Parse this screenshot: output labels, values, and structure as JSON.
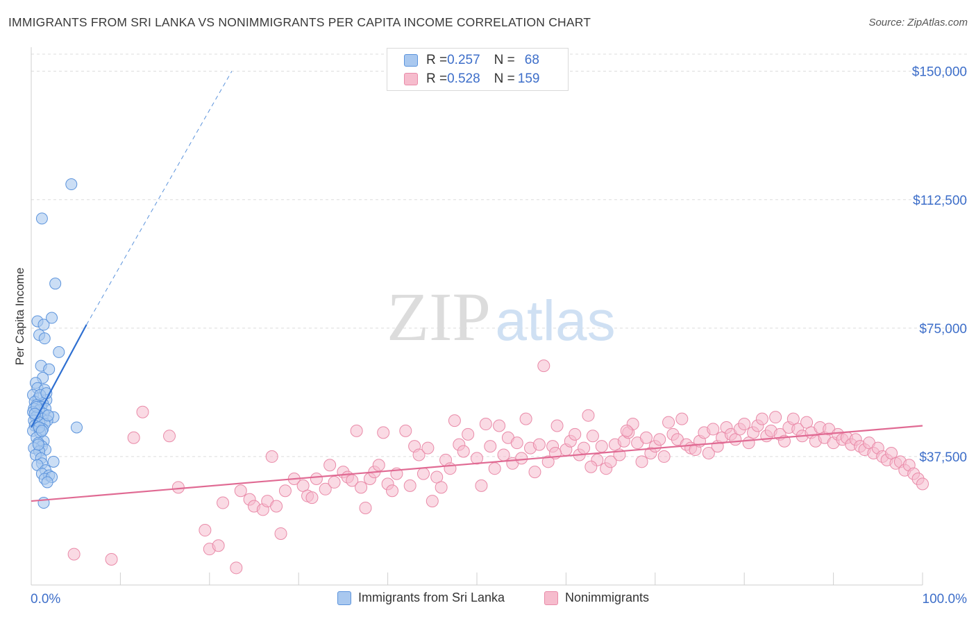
{
  "header": {
    "title": "IMMIGRANTS FROM SRI LANKA VS NONIMMIGRANTS PER CAPITA INCOME CORRELATION CHART",
    "source": "Source: ZipAtlas.com"
  },
  "watermark": {
    "zip": "ZIP",
    "atlas": "atlas"
  },
  "colors": {
    "blue_fill": "#a9c8ef",
    "blue_stroke": "#5b93dc",
    "blue_line": "#2e6fd1",
    "pink_fill": "#f6bccd",
    "pink_stroke": "#e98aa8",
    "pink_line": "#e06a93",
    "axis_label": "#3d6ec9",
    "grid": "#dcdcdc"
  },
  "inset_legend": {
    "rows": [
      {
        "r_label": "R = ",
        "r_value": "0.257",
        "n_label": "N = ",
        "n_value": "68"
      },
      {
        "r_label": "R = ",
        "r_value": "0.528",
        "n_label": "N = ",
        "n_value": "159"
      }
    ]
  },
  "chart_data": {
    "type": "scatter",
    "title": "IMMIGRANTS FROM SRI LANKA VS NONIMMIGRANTS PER CAPITA INCOME CORRELATION CHART",
    "xlabel": "",
    "ylabel": "Per Capita Income",
    "xlim": [
      0,
      100
    ],
    "ylim": [
      0,
      155000
    ],
    "x_tick_labels": [
      "0.0%",
      "100.0%"
    ],
    "y_ticks": [
      37500,
      75000,
      112500,
      150000
    ],
    "y_tick_labels": [
      "$37,500",
      "$75,000",
      "$112,500",
      "$150,000"
    ],
    "grid": true,
    "legend_position": "top-center",
    "series": [
      {
        "name": "Immigrants from Sri Lanka",
        "r": 0.257,
        "n": 68,
        "trend": {
          "x": [
            0,
            6.2
          ],
          "y": [
            46000,
            76000
          ]
        },
        "trend_extension": {
          "x": [
            6.2,
            22.5
          ],
          "y": [
            76000,
            150000
          ]
        },
        "points": [
          [
            4.5,
            117000
          ],
          [
            1.2,
            107000
          ],
          [
            2.7,
            88000
          ],
          [
            0.7,
            77000
          ],
          [
            1.4,
            76000
          ],
          [
            2.3,
            78000
          ],
          [
            0.9,
            73000
          ],
          [
            1.5,
            72000
          ],
          [
            3.1,
            68000
          ],
          [
            1.1,
            64000
          ],
          [
            2.0,
            63000
          ],
          [
            1.3,
            60500
          ],
          [
            0.5,
            59000
          ],
          [
            0.7,
            57500
          ],
          [
            1.5,
            57000
          ],
          [
            0.2,
            55500
          ],
          [
            0.8,
            54500
          ],
          [
            1.7,
            54000
          ],
          [
            0.4,
            53500
          ],
          [
            1.3,
            53000
          ],
          [
            0.6,
            52500
          ],
          [
            1.1,
            52000
          ],
          [
            0.3,
            51500
          ],
          [
            1.6,
            51500
          ],
          [
            0.9,
            51000
          ],
          [
            0.2,
            50500
          ],
          [
            1.4,
            50000
          ],
          [
            0.7,
            49500
          ],
          [
            2.5,
            49000
          ],
          [
            0.5,
            49000
          ],
          [
            1.2,
            48500
          ],
          [
            0.3,
            48000
          ],
          [
            1.8,
            48000
          ],
          [
            0.9,
            47500
          ],
          [
            1.5,
            47000
          ],
          [
            0.4,
            46500
          ],
          [
            5.1,
            46000
          ],
          [
            0.8,
            46000
          ],
          [
            1.3,
            45500
          ],
          [
            0.2,
            45000
          ],
          [
            1.0,
            44500
          ],
          [
            0.6,
            43000
          ],
          [
            1.4,
            42000
          ],
          [
            0.8,
            41500
          ],
          [
            1.2,
            40500
          ],
          [
            0.3,
            40000
          ],
          [
            1.6,
            39500
          ],
          [
            0.9,
            39000
          ],
          [
            0.5,
            38000
          ],
          [
            1.1,
            37000
          ],
          [
            2.5,
            36000
          ],
          [
            1.2,
            35500
          ],
          [
            0.7,
            35000
          ],
          [
            1.6,
            33500
          ],
          [
            1.2,
            32500
          ],
          [
            2.0,
            32000
          ],
          [
            1.5,
            31000
          ],
          [
            2.3,
            31500
          ],
          [
            1.8,
            30000
          ],
          [
            1.4,
            24000
          ],
          [
            0.9,
            46000
          ],
          [
            1.9,
            49500
          ],
          [
            0.6,
            52000
          ],
          [
            1.0,
            55500
          ],
          [
            1.7,
            56000
          ],
          [
            0.4,
            50000
          ],
          [
            1.2,
            45000
          ],
          [
            0.8,
            41000
          ]
        ]
      },
      {
        "name": "Nonimmigrants",
        "r": 0.528,
        "n": 159,
        "trend": {
          "x": [
            0,
            100
          ],
          "y": [
            24500,
            46500
          ]
        },
        "points": [
          [
            12.5,
            50500
          ],
          [
            11.5,
            43000
          ],
          [
            16.5,
            28500
          ],
          [
            19.5,
            16000
          ],
          [
            21.5,
            24000
          ],
          [
            23.5,
            27500
          ],
          [
            24.5,
            25000
          ],
          [
            25.0,
            23000
          ],
          [
            26.0,
            22000
          ],
          [
            26.5,
            24500
          ],
          [
            27.5,
            23000
          ],
          [
            28.0,
            15000
          ],
          [
            28.5,
            27500
          ],
          [
            29.5,
            31000
          ],
          [
            30.5,
            29000
          ],
          [
            31.0,
            26000
          ],
          [
            31.5,
            25500
          ],
          [
            32.0,
            31000
          ],
          [
            33.0,
            28000
          ],
          [
            34.0,
            30000
          ],
          [
            35.0,
            33000
          ],
          [
            35.5,
            31500
          ],
          [
            36.0,
            30500
          ],
          [
            37.0,
            28500
          ],
          [
            37.5,
            22500
          ],
          [
            38.0,
            31000
          ],
          [
            38.5,
            33000
          ],
          [
            39.0,
            35000
          ],
          [
            40.0,
            29500
          ],
          [
            40.5,
            27500
          ],
          [
            41.0,
            32500
          ],
          [
            42.0,
            45000
          ],
          [
            42.5,
            29000
          ],
          [
            43.0,
            40500
          ],
          [
            43.5,
            38000
          ],
          [
            44.0,
            32500
          ],
          [
            45.5,
            31500
          ],
          [
            45.0,
            24500
          ],
          [
            46.0,
            28500
          ],
          [
            46.5,
            36500
          ],
          [
            47.0,
            34000
          ],
          [
            48.0,
            41000
          ],
          [
            48.5,
            39000
          ],
          [
            49.0,
            44000
          ],
          [
            50.0,
            37000
          ],
          [
            50.5,
            29000
          ],
          [
            51.0,
            47000
          ],
          [
            51.5,
            40500
          ],
          [
            52.0,
            34000
          ],
          [
            53.0,
            38000
          ],
          [
            53.5,
            43000
          ],
          [
            54.0,
            35500
          ],
          [
            54.5,
            41500
          ],
          [
            55.5,
            48500
          ],
          [
            56.0,
            40000
          ],
          [
            56.5,
            33000
          ],
          [
            57.0,
            41000
          ],
          [
            57.5,
            64000
          ],
          [
            58.0,
            36000
          ],
          [
            58.5,
            40500
          ],
          [
            59.0,
            46500
          ],
          [
            60.0,
            39500
          ],
          [
            60.5,
            42000
          ],
          [
            61.0,
            44000
          ],
          [
            61.5,
            38000
          ],
          [
            62.0,
            40000
          ],
          [
            62.5,
            49500
          ],
          [
            63.0,
            43500
          ],
          [
            63.5,
            36500
          ],
          [
            64.0,
            40500
          ],
          [
            64.5,
            34000
          ],
          [
            65.0,
            36000
          ],
          [
            65.5,
            41000
          ],
          [
            66.0,
            38000
          ],
          [
            66.5,
            42000
          ],
          [
            67.0,
            44500
          ],
          [
            67.5,
            47000
          ],
          [
            68.0,
            41500
          ],
          [
            68.5,
            36000
          ],
          [
            69.0,
            43000
          ],
          [
            69.5,
            38500
          ],
          [
            70.0,
            40500
          ],
          [
            70.5,
            42500
          ],
          [
            71.0,
            37500
          ],
          [
            71.5,
            47500
          ],
          [
            72.0,
            44000
          ],
          [
            72.5,
            42500
          ],
          [
            73.0,
            48500
          ],
          [
            73.5,
            41000
          ],
          [
            74.0,
            40000
          ],
          [
            74.5,
            39500
          ],
          [
            75.0,
            42000
          ],
          [
            75.5,
            44500
          ],
          [
            76.0,
            38500
          ],
          [
            76.5,
            45500
          ],
          [
            77.0,
            40500
          ],
          [
            77.5,
            43000
          ],
          [
            78.0,
            46000
          ],
          [
            78.5,
            44000
          ],
          [
            79.0,
            42500
          ],
          [
            79.5,
            45500
          ],
          [
            80.0,
            47000
          ],
          [
            80.5,
            41500
          ],
          [
            81.0,
            44500
          ],
          [
            81.5,
            46500
          ],
          [
            82.0,
            48500
          ],
          [
            82.5,
            43500
          ],
          [
            83.0,
            45000
          ],
          [
            83.5,
            49000
          ],
          [
            84.0,
            44000
          ],
          [
            84.5,
            42000
          ],
          [
            85.0,
            46000
          ],
          [
            85.5,
            48500
          ],
          [
            86.0,
            45500
          ],
          [
            86.5,
            43500
          ],
          [
            87.0,
            47500
          ],
          [
            87.5,
            44500
          ],
          [
            88.0,
            42000
          ],
          [
            88.5,
            46000
          ],
          [
            89.0,
            43000
          ],
          [
            89.5,
            45500
          ],
          [
            90.0,
            41500
          ],
          [
            90.5,
            44000
          ],
          [
            91.0,
            42500
          ],
          [
            91.5,
            43000
          ],
          [
            92.0,
            41000
          ],
          [
            92.5,
            42500
          ],
          [
            93.0,
            40500
          ],
          [
            93.5,
            39500
          ],
          [
            94.0,
            41500
          ],
          [
            94.5,
            38500
          ],
          [
            95.0,
            40000
          ],
          [
            95.5,
            37500
          ],
          [
            96.0,
            36500
          ],
          [
            96.5,
            38500
          ],
          [
            97.0,
            35500
          ],
          [
            97.5,
            36000
          ],
          [
            98.0,
            33500
          ],
          [
            98.5,
            35000
          ],
          [
            99.0,
            32500
          ],
          [
            99.5,
            31000
          ],
          [
            100.0,
            29500
          ],
          [
            20.0,
            10500
          ],
          [
            21.0,
            11500
          ],
          [
            4.8,
            9000
          ],
          [
            9.0,
            7500
          ],
          [
            23.0,
            5000
          ],
          [
            15.5,
            43500
          ],
          [
            27.0,
            37500
          ],
          [
            33.5,
            35000
          ],
          [
            36.5,
            45000
          ],
          [
            39.5,
            44500
          ],
          [
            44.5,
            40000
          ],
          [
            47.5,
            48000
          ],
          [
            52.5,
            46500
          ],
          [
            55.0,
            37000
          ],
          [
            58.8,
            38500
          ],
          [
            62.8,
            34500
          ],
          [
            66.8,
            45000
          ]
        ]
      }
    ]
  },
  "bottom_legend": {
    "items": [
      {
        "label": "Immigrants from Sri Lanka"
      },
      {
        "label": "Nonimmigrants"
      }
    ]
  }
}
